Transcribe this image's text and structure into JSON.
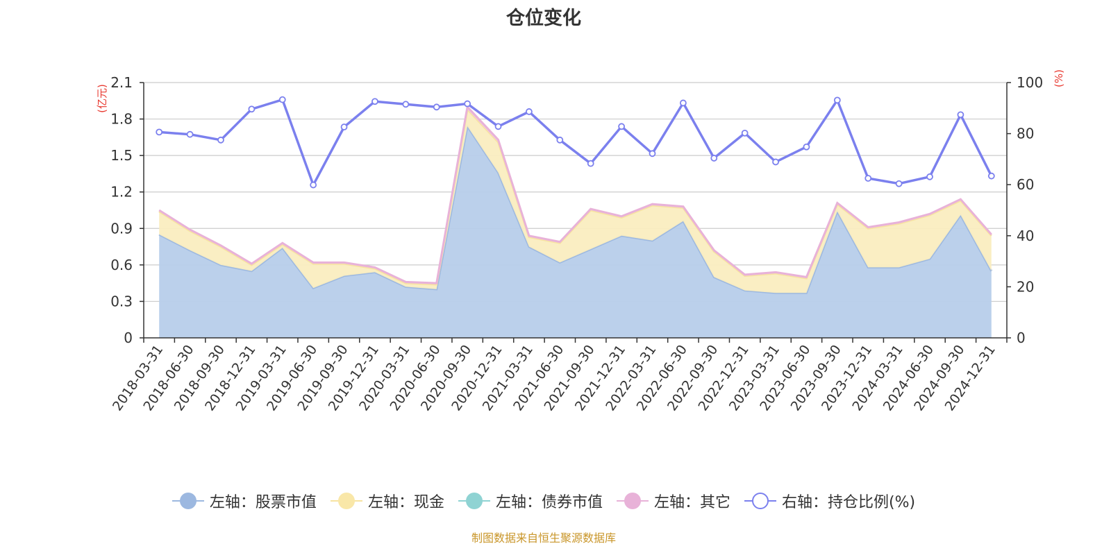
{
  "chart_data": {
    "type": "area",
    "title": "仓位变化",
    "left_axis_unit": "(亿元)",
    "right_axis_unit": "(%)",
    "categories": [
      "2018-03-31",
      "2018-06-30",
      "2018-09-30",
      "2018-12-31",
      "2019-03-31",
      "2019-06-30",
      "2019-09-30",
      "2019-12-31",
      "2020-03-31",
      "2020-06-30",
      "2020-09-30",
      "2020-12-31",
      "2021-03-31",
      "2021-06-30",
      "2021-09-30",
      "2021-12-31",
      "2022-03-31",
      "2022-06-30",
      "2022-09-30",
      "2022-12-31",
      "2023-03-31",
      "2023-06-30",
      "2023-09-30",
      "2023-12-31",
      "2024-03-31",
      "2024-06-30",
      "2024-09-30",
      "2024-12-31"
    ],
    "ylim_left": [
      0,
      2.1
    ],
    "yticks_left": [
      "0",
      "0.3",
      "0.6",
      "0.9",
      "1.2",
      "1.5",
      "1.8",
      "2.1"
    ],
    "ylim_right": [
      0,
      100
    ],
    "yticks_right": [
      "0",
      "20",
      "40",
      "60",
      "80",
      "100"
    ],
    "grid": true,
    "legend_position": "bottom",
    "series": [
      {
        "name": "左轴：股票市值",
        "axis": "left",
        "type": "stacked-area",
        "color": "#9cb8e0",
        "fill": "#b7cdea",
        "values": [
          0.85,
          0.72,
          0.6,
          0.55,
          0.74,
          0.41,
          0.51,
          0.54,
          0.42,
          0.4,
          1.74,
          1.36,
          0.75,
          0.62,
          0.73,
          0.84,
          0.8,
          0.96,
          0.5,
          0.39,
          0.37,
          0.37,
          1.04,
          0.58,
          0.58,
          0.65,
          1.01,
          0.55
        ]
      },
      {
        "name": "左轴：现金",
        "axis": "left",
        "type": "stacked-area",
        "color": "#f7e3a0",
        "fill": "#faedc0",
        "values": [
          0.19,
          0.16,
          0.15,
          0.05,
          0.03,
          0.2,
          0.1,
          0.03,
          0.03,
          0.04,
          0.14,
          0.25,
          0.08,
          0.16,
          0.32,
          0.15,
          0.29,
          0.11,
          0.21,
          0.12,
          0.16,
          0.12,
          0.06,
          0.32,
          0.36,
          0.36,
          0.12,
          0.29
        ]
      },
      {
        "name": "左轴：债券市值",
        "axis": "left",
        "type": "stacked-area",
        "color": "#8fd3d3",
        "fill": "#8fd3d3",
        "values": [
          0,
          0,
          0,
          0,
          0,
          0,
          0,
          0,
          0,
          0,
          0,
          0,
          0,
          0,
          0,
          0,
          0,
          0,
          0,
          0,
          0,
          0,
          0,
          0,
          0,
          0,
          0,
          0
        ]
      },
      {
        "name": "左轴：其它",
        "axis": "left",
        "type": "stacked-area",
        "color": "#e8b2d8",
        "fill": "#efc6e2",
        "values": [
          0.01,
          0.01,
          0.01,
          0.01,
          0.01,
          0.01,
          0.01,
          0.01,
          0.01,
          0.01,
          0.02,
          0.02,
          0.01,
          0.01,
          0.01,
          0.01,
          0.01,
          0.01,
          0.01,
          0.01,
          0.01,
          0.01,
          0.01,
          0.01,
          0.01,
          0.01,
          0.01,
          0.01
        ]
      },
      {
        "name": "右轴：持仓比例(%)",
        "axis": "right",
        "type": "line",
        "color": "#7b80ee",
        "values": [
          80.6,
          79.7,
          77.5,
          89.6,
          93.3,
          59.9,
          82.6,
          92.6,
          91.5,
          90.4,
          91.7,
          82.8,
          88.6,
          77.5,
          68.3,
          82.8,
          72.2,
          92.0,
          70.4,
          80.2,
          68.9,
          74.8,
          93.1,
          62.5,
          60.4,
          63.1,
          87.4,
          63.4
        ]
      }
    ]
  },
  "source_text": "制图数据来自恒生聚源数据库"
}
